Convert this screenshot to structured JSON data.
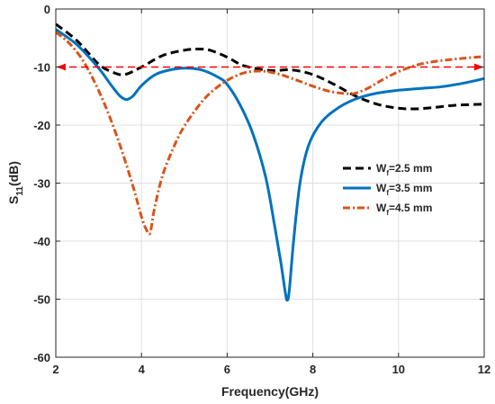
{
  "chart_data": {
    "type": "line",
    "xlabel": "Frequency(GHz)",
    "ylabel": {
      "main": "S",
      "sub": "11",
      "suffix": "(dB)"
    },
    "xlim": [
      2,
      12
    ],
    "ylim": [
      -60,
      0
    ],
    "xticks": [
      2,
      4,
      6,
      8,
      10,
      12
    ],
    "yticks": [
      0,
      -10,
      -20,
      -30,
      -40,
      -50,
      -60
    ],
    "xtick_labels": [
      "2",
      "4",
      "6",
      "8",
      "10",
      "12"
    ],
    "ytick_labels": [
      "0",
      "-10",
      "-20",
      "-30",
      "-40",
      "-50",
      "-60"
    ],
    "grid": true,
    "legend_position": "middle-right",
    "series": [
      {
        "name": "Wf=2.5 mm",
        "legend": {
          "main": "W",
          "sub": "f",
          "suffix": "=2.5 mm"
        },
        "color": "#000000",
        "style": "dashed",
        "x": [
          2.0,
          2.5,
          3.0,
          3.3,
          3.6,
          4.0,
          4.5,
          5.0,
          5.3,
          5.6,
          6.0,
          6.4,
          7.0,
          7.5,
          8.0,
          8.5,
          9.0,
          9.5,
          10.0,
          10.4,
          10.8,
          11.3,
          12.0
        ],
        "y": [
          -2.6,
          -5.5,
          -9.5,
          -10.8,
          -11.3,
          -10.0,
          -8.0,
          -7.1,
          -6.9,
          -7.1,
          -8.3,
          -9.8,
          -10.6,
          -10.5,
          -11.3,
          -13.0,
          -15.0,
          -16.4,
          -17.1,
          -17.2,
          -17.0,
          -16.6,
          -16.4
        ]
      },
      {
        "name": "Wf=3.5 mm",
        "legend": {
          "main": "W",
          "sub": "f",
          "suffix": "=3.5 mm"
        },
        "color": "#0072BD",
        "style": "solid",
        "x": [
          2.0,
          2.5,
          3.0,
          3.3,
          3.5,
          3.65,
          3.8,
          4.0,
          4.3,
          4.6,
          5.0,
          5.4,
          5.8,
          6.0,
          6.3,
          6.6,
          6.9,
          7.1,
          7.25,
          7.35,
          7.4,
          7.45,
          7.55,
          7.7,
          7.9,
          8.2,
          8.6,
          9.0,
          9.5,
          10.0,
          10.5,
          11.0,
          11.5,
          12.0
        ],
        "y": [
          -3.5,
          -6.2,
          -10.2,
          -13.2,
          -15.0,
          -15.6,
          -15.0,
          -13.2,
          -11.4,
          -10.6,
          -10.2,
          -10.5,
          -11.8,
          -13.0,
          -16.5,
          -21.5,
          -29.0,
          -37.0,
          -43.5,
          -48.5,
          -50.2,
          -48.5,
          -40.0,
          -30.0,
          -23.5,
          -19.5,
          -17.0,
          -15.5,
          -14.5,
          -14.0,
          -13.7,
          -13.4,
          -12.8,
          -12.0
        ]
      },
      {
        "name": "Wf=4.5 mm",
        "legend": {
          "main": "W",
          "sub": "f",
          "suffix": "=4.5 mm"
        },
        "color": "#D95319",
        "style": "dashdot",
        "x": [
          2.0,
          2.3,
          2.6,
          2.9,
          3.2,
          3.5,
          3.8,
          4.0,
          4.1,
          4.2,
          4.3,
          4.5,
          4.8,
          5.0,
          5.3,
          5.6,
          6.0,
          6.4,
          6.8,
          7.2,
          7.6,
          8.0,
          8.4,
          8.8,
          9.0,
          9.3,
          9.6,
          10.0,
          10.5,
          11.0,
          11.5,
          12.0
        ],
        "y": [
          -4.0,
          -5.8,
          -8.5,
          -12.5,
          -17.5,
          -23.5,
          -30.5,
          -35.8,
          -37.8,
          -38.6,
          -34.5,
          -28.5,
          -23.0,
          -20.2,
          -17.0,
          -14.5,
          -12.3,
          -11.0,
          -10.7,
          -11.2,
          -12.2,
          -13.3,
          -14.2,
          -14.6,
          -14.5,
          -13.6,
          -12.3,
          -10.8,
          -9.5,
          -8.9,
          -8.5,
          -8.2
        ]
      }
    ],
    "reference_line": {
      "y": -10,
      "x_start": 2,
      "x_end": 12,
      "color": "#FF0000",
      "style": "dashed",
      "arrows": "both"
    }
  }
}
